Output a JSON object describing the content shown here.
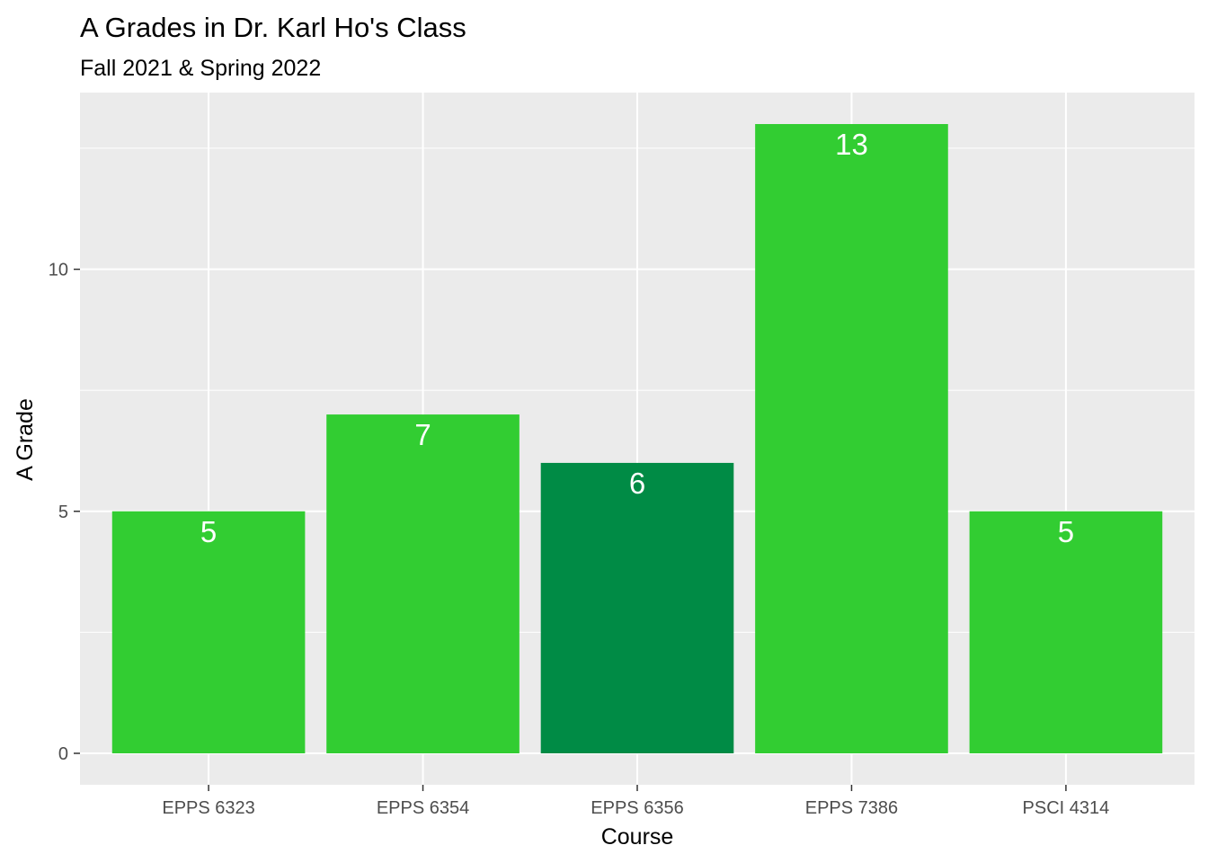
{
  "chart_data": {
    "type": "bar",
    "title": "A Grades in Dr. Karl Ho's Class",
    "subtitle": "Fall 2021 & Spring 2022",
    "xlabel": "Course",
    "ylabel": "A Grade",
    "categories": [
      "EPPS 6323",
      "EPPS 6354",
      "EPPS 6356",
      "EPPS 7386",
      "PSCI 4314"
    ],
    "values": [
      5,
      7,
      6,
      13,
      5
    ],
    "value_labels": [
      "5",
      "7",
      "6",
      "13",
      "5"
    ],
    "bar_colors": [
      "#32CD32",
      "#32CD32",
      "#008B45",
      "#32CD32",
      "#32CD32"
    ],
    "ylim": [
      -0.65,
      13.65
    ],
    "y_ticks": [
      0,
      5,
      10
    ],
    "y_tick_labels": [
      "0",
      "5",
      "10"
    ],
    "grid": true,
    "panel_background": "#EBEBEB",
    "grid_color": "#FFFFFF",
    "legend": "none"
  }
}
